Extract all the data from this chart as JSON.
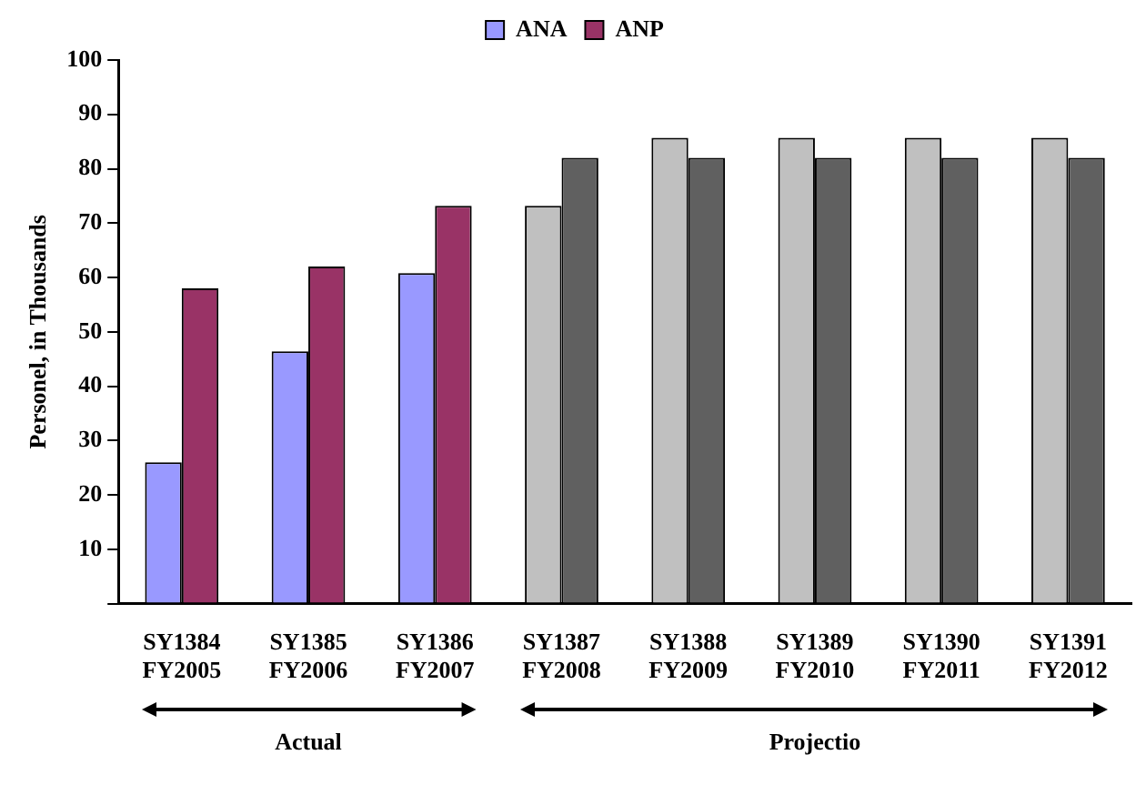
{
  "chart_data": {
    "type": "bar",
    "ylabel": "Personel, in Thousands",
    "categories": [
      "SY1384\nFY2005",
      "SY1385\nFY2006",
      "SY1386\nFY2007",
      "SY1387\nFY2008",
      "SY1388\nFY2009",
      "SY1389\nFY2010",
      "SY1390\nFY2011",
      "SY1391\nFY2012"
    ],
    "series": [
      {
        "name": "ANA",
        "color": "#9999ff",
        "colors": [
          "#9999ff",
          "#9999ff",
          "#9999ff",
          "#c0c0c0",
          "#c0c0c0",
          "#c0c0c0",
          "#c0c0c0",
          "#c0c0c0"
        ],
        "values": [
          26,
          46.4,
          60.8,
          73.2,
          85.7,
          85.7,
          85.7,
          85.7
        ]
      },
      {
        "name": "ANP",
        "color": "#993366",
        "colors": [
          "#993366",
          "#993366",
          "#993366",
          "#606060",
          "#606060",
          "#606060",
          "#606060",
          "#606060"
        ],
        "values": [
          58,
          62,
          73.2,
          82,
          82,
          82,
          82,
          82
        ]
      }
    ],
    "ylim": [
      0,
      100
    ],
    "yticks": [
      {
        "value": 0,
        "label": null
      },
      10,
      20,
      30,
      40,
      50,
      60,
      70,
      80,
      90,
      100
    ],
    "grid": false,
    "legend": "top",
    "annotations": [
      "Actual",
      "Projectio"
    ]
  }
}
